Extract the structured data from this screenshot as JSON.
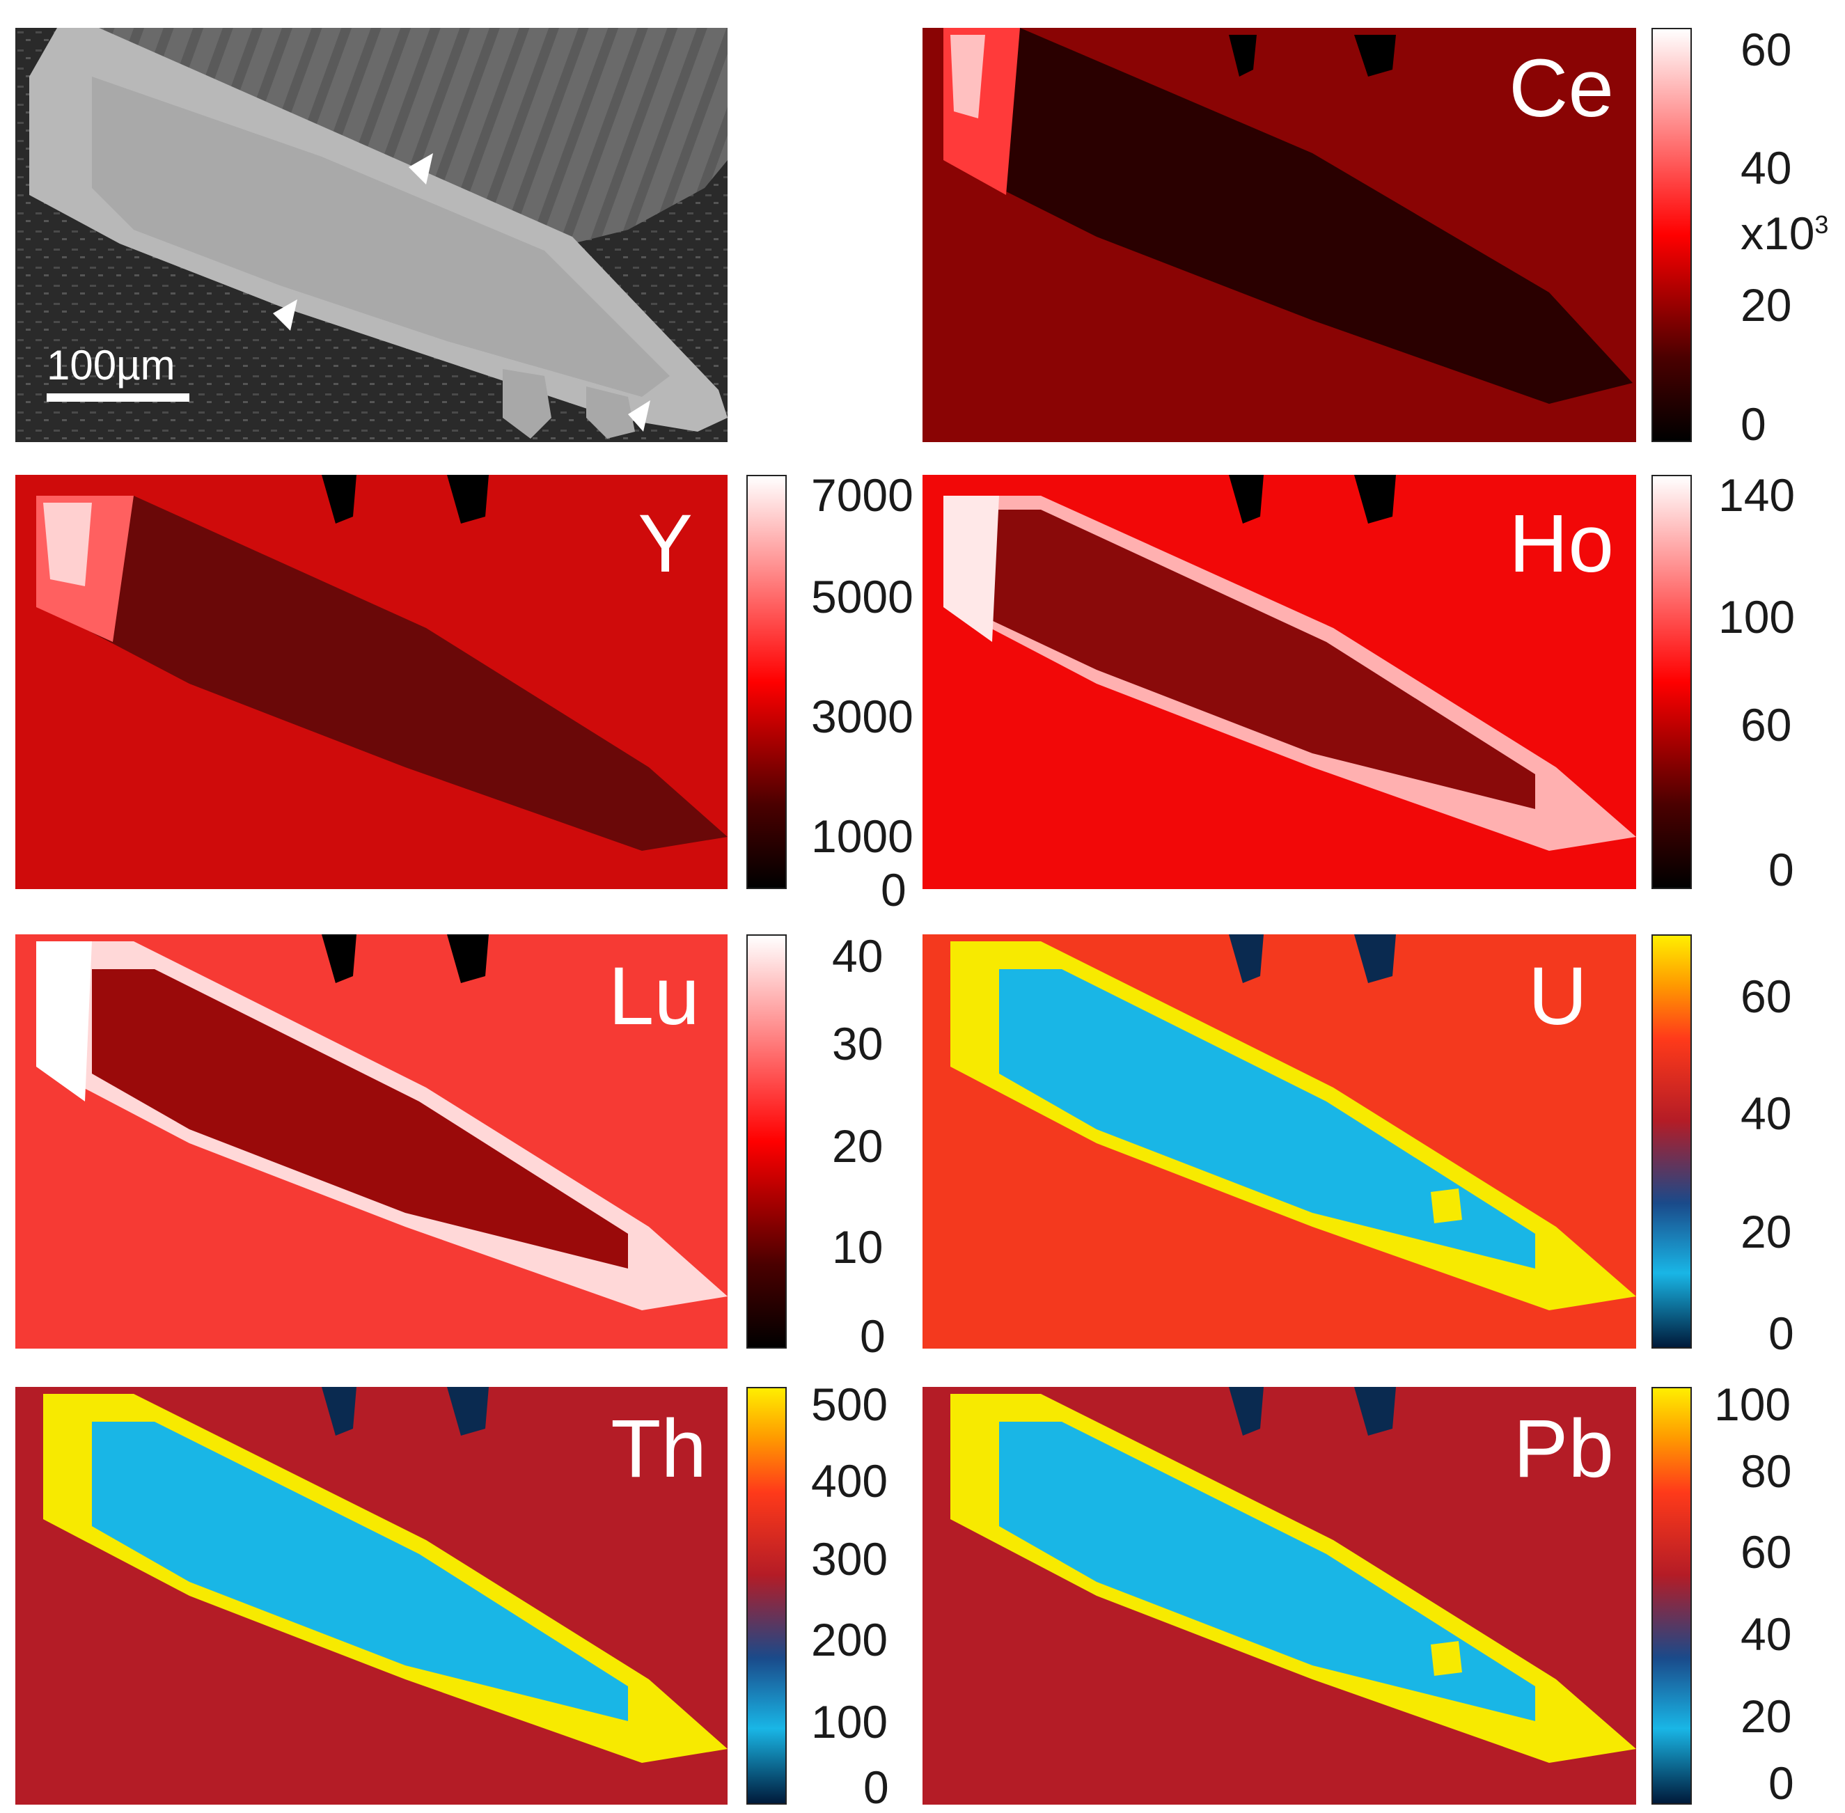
{
  "sem": {
    "scale_label": "100µm"
  },
  "panels": {
    "ce": {
      "label": "Ce",
      "ticks": [
        "60",
        "40",
        "20",
        "0"
      ],
      "unit": "x10",
      "unit_exp": "3"
    },
    "y": {
      "label": "Y",
      "ticks": [
        "7000",
        "5000",
        "3000",
        "1000",
        "0"
      ]
    },
    "ho": {
      "label": "Ho",
      "ticks": [
        "140",
        "100",
        "60",
        "0"
      ]
    },
    "lu": {
      "label": "Lu",
      "ticks": [
        "40",
        "30",
        "20",
        "10",
        "0"
      ]
    },
    "u": {
      "label": "U",
      "ticks": [
        "60",
        "40",
        "20",
        "0"
      ]
    },
    "th": {
      "label": "Th",
      "ticks": [
        "500",
        "400",
        "300",
        "200",
        "100",
        "0"
      ]
    },
    "pb": {
      "label": "Pb",
      "ticks": [
        "100",
        "80",
        "60",
        "40",
        "20",
        "0"
      ]
    }
  },
  "colors": {
    "ce_bg": "#8a0404",
    "y_bg": "#cf0b0b",
    "ho_bg": "#f20808",
    "lu_bg": "#f63a34",
    "u_bg": "#f4391e",
    "th_bg": "#b41c26",
    "pb_bg": "#b41c26",
    "cyan": "#19b6e6",
    "yellow": "#f7ea00"
  }
}
